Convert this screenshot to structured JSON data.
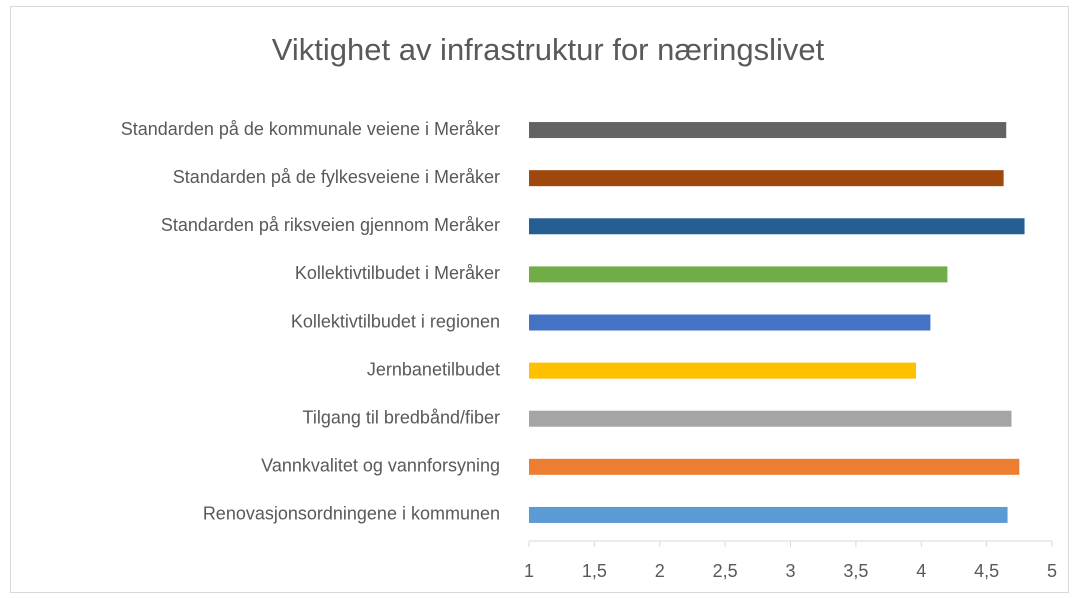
{
  "chart_data": {
    "type": "barh",
    "title": "Viktighet av infrastruktur for næringslivet",
    "categories": [
      "Standarden på de kommunale veiene i Meråker",
      "Standarden på de fylkesveiene i Meråker",
      "Standarden på riksveien gjennom Meråker",
      "Kollektivtilbudet i Meråker",
      "Kollektivtilbudet i regionen",
      "Jernbanetilbudet",
      "Tilgang til bredbånd/fiber",
      "Vannkvalitet og vannforsyning",
      "Renovasjonsordningene i kommunen"
    ],
    "values": [
      4.65,
      4.63,
      4.79,
      4.2,
      4.07,
      3.96,
      4.69,
      4.75,
      4.66
    ],
    "colors": [
      "#636363",
      "#9e480e",
      "#255e91",
      "#70ad47",
      "#4472c4",
      "#ffc000",
      "#a5a5a5",
      "#ed7d31",
      "#5b9bd5"
    ],
    "xlim": [
      1,
      5
    ],
    "xticks": [
      1,
      {
        "value": 1.5,
        "label": "1,5"
      },
      2,
      {
        "value": 2.5,
        "label": "2,5"
      },
      3,
      {
        "value": 3.5,
        "label": "3,5"
      },
      4,
      {
        "value": 4.5,
        "label": "4,5"
      },
      5
    ]
  }
}
